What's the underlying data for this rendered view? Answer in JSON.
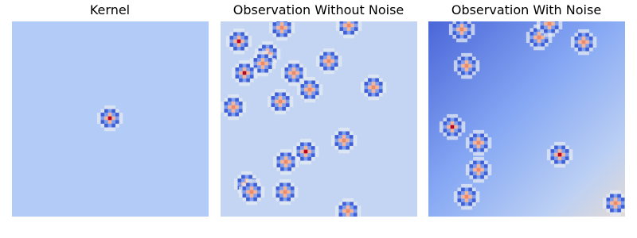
{
  "panels": [
    {
      "title": "Kernel"
    },
    {
      "title": "Observation Without Noise"
    },
    {
      "title": "Observation With Noise"
    }
  ]
}
